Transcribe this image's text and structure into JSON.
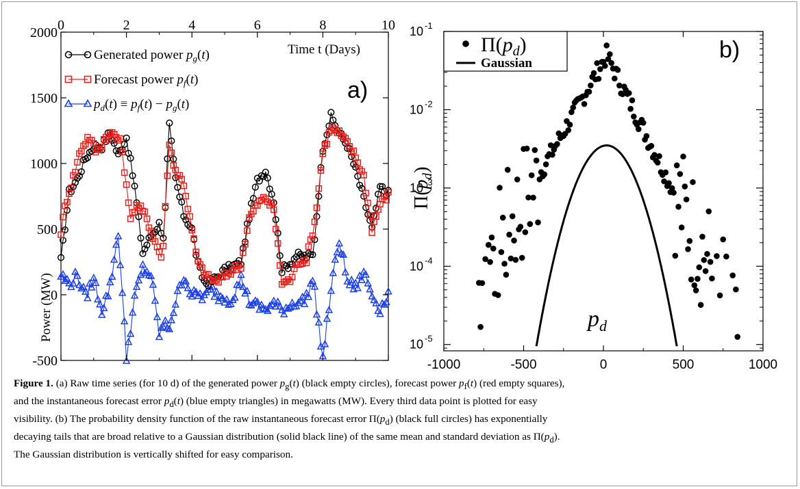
{
  "chart_data": [
    {
      "type": "line",
      "panel_label": "a)",
      "ylabel": "Power (MW)",
      "x_axis_label": "Time t (Days)",
      "xlim": [
        0,
        10
      ],
      "ylim": [
        -500,
        2000
      ],
      "x_ticks": [
        "0",
        "2",
        "4",
        "6",
        "8",
        "10"
      ],
      "y_ticks": [
        "2000",
        "1500",
        "1000",
        "500",
        "0",
        "-500"
      ],
      "legend": [
        "Generated power p_g(t)",
        "Forecast power p_f(t)",
        "p_d(t) ≡ p_f(t) − p_g(t)"
      ],
      "legend_position": "top-left",
      "series": [
        {
          "name": "Generated power p_g(t)",
          "color": "#000000",
          "marker": "open-circle",
          "points": [
            [
              0,
              260
            ],
            [
              0.25,
              780
            ],
            [
              0.5,
              880
            ],
            [
              0.75,
              1040
            ],
            [
              1.0,
              1130
            ],
            [
              1.25,
              1130
            ],
            [
              1.5,
              1240
            ],
            [
              1.75,
              1060
            ],
            [
              2.0,
              1200
            ],
            [
              2.25,
              820
            ],
            [
              2.5,
              320
            ],
            [
              2.75,
              450
            ],
            [
              3.0,
              540
            ],
            [
              3.15,
              430
            ],
            [
              3.3,
              1310
            ],
            [
              3.5,
              880
            ],
            [
              3.75,
              610
            ],
            [
              4.0,
              500
            ],
            [
              4.2,
              210
            ],
            [
              4.4,
              90
            ],
            [
              4.6,
              100
            ],
            [
              4.8,
              140
            ],
            [
              5.0,
              190
            ],
            [
              5.2,
              210
            ],
            [
              5.5,
              250
            ],
            [
              5.75,
              600
            ],
            [
              6.0,
              870
            ],
            [
              6.25,
              950
            ],
            [
              6.5,
              720
            ],
            [
              6.75,
              190
            ],
            [
              7.0,
              240
            ],
            [
              7.2,
              300
            ],
            [
              7.45,
              290
            ],
            [
              7.7,
              300
            ],
            [
              8.0,
              1120
            ],
            [
              8.25,
              1360
            ],
            [
              8.5,
              1230
            ],
            [
              8.75,
              1140
            ],
            [
              9.0,
              950
            ],
            [
              9.25,
              730
            ],
            [
              9.5,
              500
            ],
            [
              9.75,
              820
            ],
            [
              10.0,
              770
            ]
          ]
        },
        {
          "name": "Forecast power p_f(t)",
          "color": "#e8201c",
          "marker": "open-square",
          "points": [
            [
              0,
              480
            ],
            [
              0.15,
              700
            ],
            [
              0.35,
              870
            ],
            [
              0.6,
              1100
            ],
            [
              0.85,
              1210
            ],
            [
              1.1,
              1080
            ],
            [
              1.35,
              1200
            ],
            [
              1.6,
              1230
            ],
            [
              1.85,
              1150
            ],
            [
              2.1,
              600
            ],
            [
              2.35,
              680
            ],
            [
              2.6,
              600
            ],
            [
              2.85,
              420
            ],
            [
              3.1,
              270
            ],
            [
              3.3,
              1150
            ],
            [
              3.5,
              950
            ],
            [
              3.75,
              850
            ],
            [
              4.0,
              490
            ],
            [
              4.2,
              230
            ],
            [
              4.5,
              130
            ],
            [
              4.75,
              100
            ],
            [
              5.0,
              140
            ],
            [
              5.25,
              190
            ],
            [
              5.5,
              230
            ],
            [
              5.75,
              580
            ],
            [
              6.0,
              690
            ],
            [
              6.25,
              740
            ],
            [
              6.5,
              650
            ],
            [
              6.75,
              90
            ],
            [
              7.0,
              110
            ],
            [
              7.25,
              250
            ],
            [
              7.5,
              270
            ],
            [
              7.75,
              550
            ],
            [
              8.0,
              1080
            ],
            [
              8.25,
              1270
            ],
            [
              8.5,
              1230
            ],
            [
              8.75,
              1150
            ],
            [
              9.0,
              1050
            ],
            [
              9.25,
              900
            ],
            [
              9.5,
              500
            ],
            [
              9.75,
              700
            ],
            [
              10.0,
              760
            ]
          ]
        },
        {
          "name": "p_d(t) ≡ p_f(t) − p_g(t)",
          "color": "#1a3ee8",
          "marker": "open-triangle",
          "points": [
            [
              0,
              150
            ],
            [
              0.25,
              80
            ],
            [
              0.5,
              150
            ],
            [
              0.75,
              -20
            ],
            [
              1.0,
              120
            ],
            [
              1.25,
              -120
            ],
            [
              1.5,
              60
            ],
            [
              1.75,
              480
            ],
            [
              2.0,
              -480
            ],
            [
              2.25,
              -30
            ],
            [
              2.5,
              200
            ],
            [
              2.75,
              150
            ],
            [
              3.0,
              -300
            ],
            [
              3.15,
              -230
            ],
            [
              3.3,
              -250
            ],
            [
              3.5,
              -60
            ],
            [
              3.75,
              150
            ],
            [
              4.0,
              -10
            ],
            [
              4.2,
              0
            ],
            [
              4.4,
              -20
            ],
            [
              4.6,
              40
            ],
            [
              4.8,
              -10
            ],
            [
              5.0,
              -20
            ],
            [
              5.2,
              -40
            ],
            [
              5.5,
              120
            ],
            [
              5.75,
              -50
            ],
            [
              6.0,
              -90
            ],
            [
              6.25,
              -110
            ],
            [
              6.5,
              -70
            ],
            [
              6.75,
              -120
            ],
            [
              7.0,
              -80
            ],
            [
              7.2,
              -50
            ],
            [
              7.45,
              -50
            ],
            [
              7.7,
              120
            ],
            [
              8.0,
              -490
            ],
            [
              8.25,
              40
            ],
            [
              8.5,
              420
            ],
            [
              8.75,
              100
            ],
            [
              9.0,
              50
            ],
            [
              9.25,
              170
            ],
            [
              9.5,
              0
            ],
            [
              9.75,
              -110
            ],
            [
              10.0,
              0
            ]
          ]
        }
      ]
    },
    {
      "type": "scatter",
      "panel_label": "b)",
      "ylabel": "Π(p_d)",
      "xlabel": "p_d",
      "xlim": [
        -1000,
        1000
      ],
      "ylim": [
        8.3e-06,
        0.1
      ],
      "yscale": "log",
      "x_ticks": [
        "-1000",
        "-500",
        "0",
        "500",
        "1000"
      ],
      "y_tick_labels": [
        "10^-1",
        "10^-2",
        "10^-3",
        "10^-4",
        "10^-5"
      ],
      "legend": [
        "Π(p_d)",
        "Gaussian"
      ],
      "legend_position": "top-left",
      "series": [
        {
          "name": "Π(p_d)",
          "marker": "filled-circle",
          "color": "#000000",
          "formula_note": "exponential tails",
          "peak_x": 20,
          "peak_y": 0.05,
          "left_decay": 120,
          "right_decay": 105
        },
        {
          "name": "Gaussian",
          "marker": "line",
          "color": "#000000",
          "mean": 20,
          "peak_y": 0.0035,
          "sigma": 128
        }
      ]
    }
  ],
  "caption": {
    "fig_label": "Figure 1.",
    "lines": [
      "(a) Raw time series (for 10 d) of the generated power p_g(t) (black empty circles), forecast power p_f(t) (red empty squares),",
      "and the instantaneous forecast error p_d(t) (blue empty triangles) in megawatts (MW). Every third data point is plotted for easy",
      "visibility. (b) The probability density function of the raw instantaneous forecast error Π(p_d) (black full circles) has exponentially",
      "decaying tails that are broad relative to a Gaussian distribution (solid black line) of the same mean and standard deviation as Π(p_d).",
      "The Gaussian distribution is vertically shifted for easy comparison."
    ]
  }
}
